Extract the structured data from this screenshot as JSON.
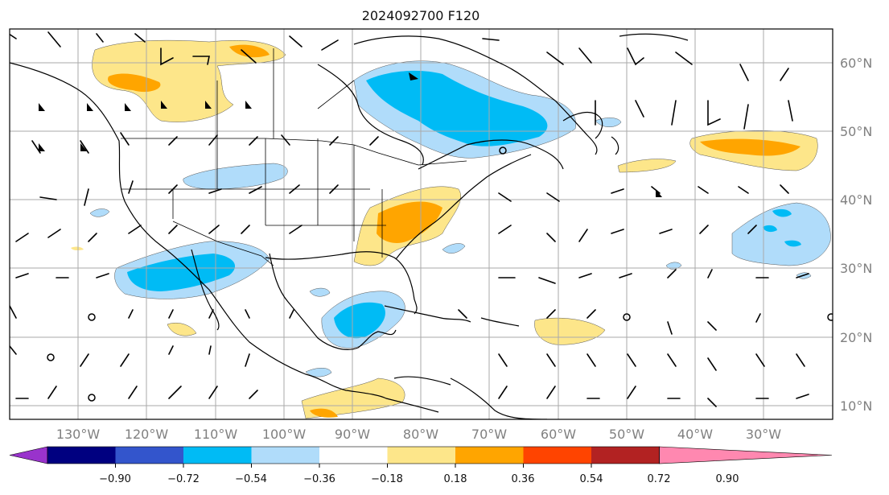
{
  "title": "2024092700 F120",
  "map": {
    "lon_labels": [
      "130°W",
      "120°W",
      "110°W",
      "100°W",
      "90°W",
      "80°W",
      "70°W",
      "60°W",
      "50°W",
      "40°W",
      "30°W"
    ],
    "lat_labels": [
      "60°N",
      "50°N",
      "40°N",
      "30°N",
      "20°N",
      "10°N"
    ]
  },
  "colorbar": {
    "tick_labels": [
      "−0.90",
      "−0.72",
      "−0.54",
      "−0.36",
      "−0.18",
      "0.18",
      "0.36",
      "0.54",
      "0.72",
      "0.90"
    ],
    "colors": [
      "#9933cc",
      "#000080",
      "#3355cc",
      "#00bbf5",
      "#b0dcfa",
      "#ffffff",
      "#fde68a",
      "#ffa500",
      "#ff4400",
      "#b22222",
      "#ff88b0"
    ]
  }
}
